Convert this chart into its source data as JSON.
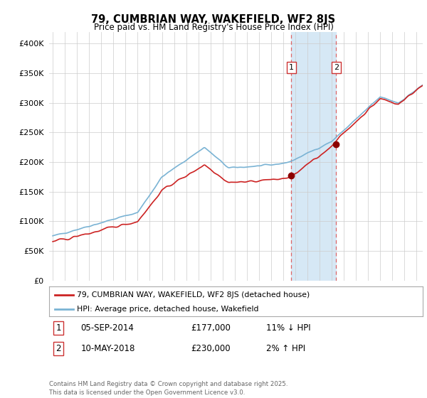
{
  "title": "79, CUMBRIAN WAY, WAKEFIELD, WF2 8JS",
  "subtitle": "Price paid vs. HM Land Registry's House Price Index (HPI)",
  "footer": "Contains HM Land Registry data © Crown copyright and database right 2025.\nThis data is licensed under the Open Government Licence v3.0.",
  "legend_line1": "79, CUMBRIAN WAY, WAKEFIELD, WF2 8JS (detached house)",
  "legend_line2": "HPI: Average price, detached house, Wakefield",
  "annotation1_label": "1",
  "annotation1_date": "05-SEP-2014",
  "annotation1_price": "£177,000",
  "annotation1_hpi": "11% ↓ HPI",
  "annotation2_label": "2",
  "annotation2_date": "10-MAY-2018",
  "annotation2_price": "£230,000",
  "annotation2_hpi": "2% ↑ HPI",
  "sale1_x": 2014.67,
  "sale1_y": 177000,
  "sale2_x": 2018.36,
  "sale2_y": 230000,
  "shade_x1": 2014.67,
  "shade_x2": 2018.36,
  "hpi_color": "#7ab3d4",
  "price_color": "#cc2222",
  "sale_dot_color": "#8b0000",
  "shade_color": "#d6e8f5",
  "vline_color": "#dd6666",
  "ylim": [
    0,
    420000
  ],
  "yticks": [
    0,
    50000,
    100000,
    150000,
    200000,
    250000,
    300000,
    350000,
    400000
  ],
  "xlim_left": 1994.7,
  "xlim_right": 2025.5,
  "background_color": "#ffffff"
}
